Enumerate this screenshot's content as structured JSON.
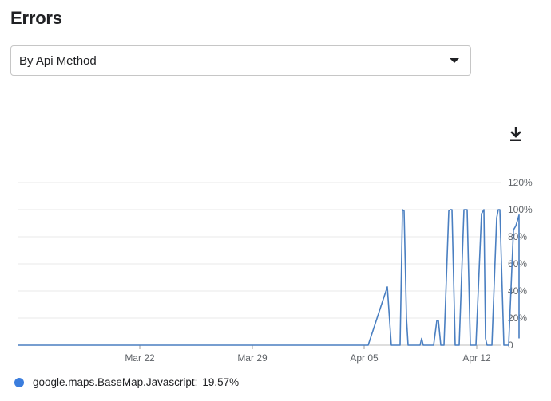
{
  "header": {
    "title": "Errors"
  },
  "selector": {
    "value": "By Api Method"
  },
  "toolbar": {
    "download_icon": "download-icon"
  },
  "colors": {
    "series": "#4a7fc1",
    "legend_dot": "#3b7ddd",
    "grid": "#e8e8e8"
  },
  "chart_data": {
    "type": "line",
    "x_ticks": [
      "Mar 22",
      "Mar 29",
      "Apr 05",
      "Apr 12"
    ],
    "y_ticks": [
      "0",
      "20%",
      "40%",
      "60%",
      "80%",
      "100%",
      "120%"
    ],
    "ylim": [
      0,
      120
    ],
    "grid": "horizontal",
    "legend_position": "bottom-left",
    "series": [
      {
        "name": "google.maps.BaseMap.Javascript",
        "points": [
          [
            0,
            0
          ],
          [
            438,
            0
          ],
          [
            462,
            43
          ],
          [
            467,
            0
          ],
          [
            478,
            0
          ],
          [
            481,
            100
          ],
          [
            483,
            99
          ],
          [
            486,
            20
          ],
          [
            488,
            0
          ],
          [
            503,
            0
          ],
          [
            505,
            5
          ],
          [
            507,
            0
          ],
          [
            520,
            0
          ],
          [
            524,
            18
          ],
          [
            526,
            18
          ],
          [
            529,
            0
          ],
          [
            533,
            0
          ],
          [
            539,
            99
          ],
          [
            541,
            100
          ],
          [
            543,
            100
          ],
          [
            547,
            0
          ],
          [
            552,
            0
          ],
          [
            558,
            100
          ],
          [
            562,
            100
          ],
          [
            566,
            0
          ],
          [
            573,
            0
          ],
          [
            580,
            97
          ],
          [
            583,
            100
          ],
          [
            585,
            5
          ],
          [
            587,
            0
          ],
          [
            593,
            0
          ],
          [
            599,
            94
          ],
          [
            601,
            100
          ],
          [
            603,
            100
          ],
          [
            608,
            0
          ],
          [
            614,
            0
          ],
          [
            620,
            85
          ],
          [
            623,
            88
          ],
          [
            627,
            96
          ],
          [
            627,
            5
          ]
        ]
      }
    ]
  },
  "legend": {
    "name": "google.maps.BaseMap.Javascript:",
    "value": "19.57%"
  }
}
